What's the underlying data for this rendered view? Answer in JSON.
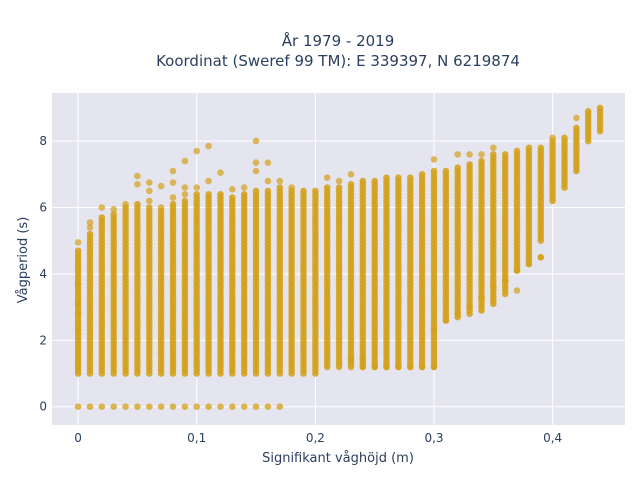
{
  "chart_data": {
    "type": "scatter",
    "title_lines": [
      "År 1979 - 2019",
      "Koordinat (Sweref 99 TM): E 339397, N 6219874"
    ],
    "xlabel": "Signifikant våghöjd (m)",
    "ylabel": "Vågperiod (s)",
    "xlim": [
      -0.022,
      0.461
    ],
    "ylim": [
      -0.55,
      9.45
    ],
    "x_ticks": [
      0,
      0.1,
      0.2,
      0.3,
      0.4
    ],
    "x_tick_labels": [
      "0",
      "0,1",
      "0,2",
      "0,3",
      "0,4"
    ],
    "y_ticks": [
      0,
      2,
      4,
      6,
      8
    ],
    "y_tick_labels": [
      "0",
      "2",
      "4",
      "6",
      "8"
    ],
    "grid": true,
    "legend": "none",
    "marker_color": "#D4A017",
    "plot_bg": "#E5E5F0",
    "columns": [
      {
        "x": 0.0,
        "ymin": 1.0,
        "ymax": 4.7,
        "extra": [
          4.95,
          3.7,
          3.1,
          2.8,
          2.3,
          0
        ]
      },
      {
        "x": 0.01,
        "ymin": 1.0,
        "ymax": 5.2,
        "extra": [
          5.55,
          5.4,
          0
        ]
      },
      {
        "x": 0.02,
        "ymin": 1.0,
        "ymax": 5.7,
        "extra": [
          6.0,
          0
        ]
      },
      {
        "x": 0.03,
        "ymin": 1.0,
        "ymax": 5.8,
        "extra": [
          5.95,
          0
        ]
      },
      {
        "x": 0.04,
        "ymin": 1.0,
        "ymax": 6.0,
        "extra": [
          6.1,
          0
        ]
      },
      {
        "x": 0.05,
        "ymin": 1.0,
        "ymax": 6.1,
        "extra": [
          6.7,
          6.95,
          0
        ]
      },
      {
        "x": 0.06,
        "ymin": 1.0,
        "ymax": 6.0,
        "extra": [
          6.2,
          6.5,
          6.75,
          0
        ]
      },
      {
        "x": 0.07,
        "ymin": 1.0,
        "ymax": 5.9,
        "extra": [
          6.0,
          6.65,
          0
        ]
      },
      {
        "x": 0.08,
        "ymin": 1.0,
        "ymax": 6.1,
        "extra": [
          6.3,
          6.75,
          7.1,
          0
        ]
      },
      {
        "x": 0.09,
        "ymin": 1.0,
        "ymax": 6.2,
        "extra": [
          6.4,
          7.4,
          6.6,
          0
        ]
      },
      {
        "x": 0.1,
        "ymin": 1.0,
        "ymax": 6.4,
        "extra": [
          6.6,
          7.7,
          0
        ]
      },
      {
        "x": 0.11,
        "ymin": 1.0,
        "ymax": 6.4,
        "extra": [
          6.8,
          7.85,
          0
        ]
      },
      {
        "x": 0.12,
        "ymin": 1.0,
        "ymax": 6.4,
        "extra": [
          7.05,
          0
        ]
      },
      {
        "x": 0.13,
        "ymin": 1.0,
        "ymax": 6.3,
        "extra": [
          6.55,
          0
        ]
      },
      {
        "x": 0.14,
        "ymin": 1.0,
        "ymax": 6.4,
        "extra": [
          6.6,
          0
        ]
      },
      {
        "x": 0.15,
        "ymin": 1.0,
        "ymax": 6.5,
        "extra": [
          7.1,
          7.35,
          8.0,
          0
        ]
      },
      {
        "x": 0.16,
        "ymin": 1.0,
        "ymax": 6.5,
        "extra": [
          6.8,
          7.35,
          0
        ]
      },
      {
        "x": 0.17,
        "ymin": 1.0,
        "ymax": 6.6,
        "extra": [
          6.8,
          0
        ]
      },
      {
        "x": 0.18,
        "ymin": 1.0,
        "ymax": 6.5,
        "extra": [
          6.6
        ]
      },
      {
        "x": 0.19,
        "ymin": 1.0,
        "ymax": 6.5,
        "extra": []
      },
      {
        "x": 0.2,
        "ymin": 1.0,
        "ymax": 6.5,
        "extra": []
      },
      {
        "x": 0.21,
        "ymin": 1.2,
        "ymax": 6.6,
        "extra": [
          6.9
        ]
      },
      {
        "x": 0.22,
        "ymin": 1.2,
        "ymax": 6.6,
        "extra": [
          6.8
        ]
      },
      {
        "x": 0.23,
        "ymin": 1.2,
        "ymax": 6.7,
        "extra": [
          7.0,
          1.45
        ]
      },
      {
        "x": 0.24,
        "ymin": 1.2,
        "ymax": 6.8,
        "extra": [
          1.45
        ]
      },
      {
        "x": 0.25,
        "ymin": 1.2,
        "ymax": 6.8,
        "extra": []
      },
      {
        "x": 0.26,
        "ymin": 1.2,
        "ymax": 6.9,
        "extra": []
      },
      {
        "x": 0.27,
        "ymin": 1.2,
        "ymax": 6.9,
        "extra": []
      },
      {
        "x": 0.28,
        "ymin": 1.2,
        "ymax": 6.9,
        "extra": []
      },
      {
        "x": 0.29,
        "ymin": 1.2,
        "ymax": 7.0,
        "extra": []
      },
      {
        "x": 0.3,
        "ymin": 1.2,
        "ymax": 7.1,
        "extra": [
          7.45
        ]
      },
      {
        "x": 0.31,
        "ymin": 2.6,
        "ymax": 7.1,
        "extra": []
      },
      {
        "x": 0.32,
        "ymin": 2.7,
        "ymax": 7.2,
        "extra": [
          7.6
        ]
      },
      {
        "x": 0.33,
        "ymin": 2.8,
        "ymax": 7.3,
        "extra": [
          7.6
        ]
      },
      {
        "x": 0.34,
        "ymin": 2.9,
        "ymax": 7.4,
        "extra": [
          7.6
        ]
      },
      {
        "x": 0.35,
        "ymin": 3.1,
        "ymax": 7.6,
        "extra": [
          7.8
        ]
      },
      {
        "x": 0.36,
        "ymin": 3.4,
        "ymax": 7.6,
        "extra": []
      },
      {
        "x": 0.37,
        "ymin": 4.1,
        "ymax": 7.7,
        "extra": [
          3.5
        ]
      },
      {
        "x": 0.38,
        "ymin": 4.4,
        "ymax": 7.8,
        "extra": [
          4.3
        ]
      },
      {
        "x": 0.39,
        "ymin": 5.0,
        "ymax": 7.8,
        "extra": [
          4.5
        ]
      },
      {
        "x": 0.4,
        "ymin": 6.2,
        "ymax": 8.0,
        "extra": [
          8.1
        ]
      },
      {
        "x": 0.41,
        "ymin": 6.6,
        "ymax": 8.1,
        "extra": []
      },
      {
        "x": 0.42,
        "ymin": 7.1,
        "ymax": 8.4,
        "extra": [
          8.7
        ]
      },
      {
        "x": 0.43,
        "ymin": 8.0,
        "ymax": 8.9,
        "extra": []
      },
      {
        "x": 0.44,
        "ymin": 8.3,
        "ymax": 9.0,
        "extra": []
      }
    ],
    "diagonal_points": [
      [
        0.3,
        2.3
      ],
      [
        0.31,
        2.6
      ],
      [
        0.32,
        2.8
      ],
      [
        0.33,
        3.0
      ],
      [
        0.34,
        3.3
      ],
      [
        0.35,
        3.6
      ],
      [
        0.36,
        3.8
      ],
      [
        0.37,
        4.1
      ],
      [
        0.38,
        4.3
      ],
      [
        0.39,
        4.5
      ]
    ],
    "low_row_points": [
      [
        0.24,
        1.2
      ],
      [
        0.25,
        1.2
      ],
      [
        0.26,
        1.2
      ],
      [
        0.27,
        1.2
      ],
      [
        0.28,
        1.2
      ],
      [
        0.29,
        1.2
      ],
      [
        0.3,
        1.2
      ]
    ]
  }
}
